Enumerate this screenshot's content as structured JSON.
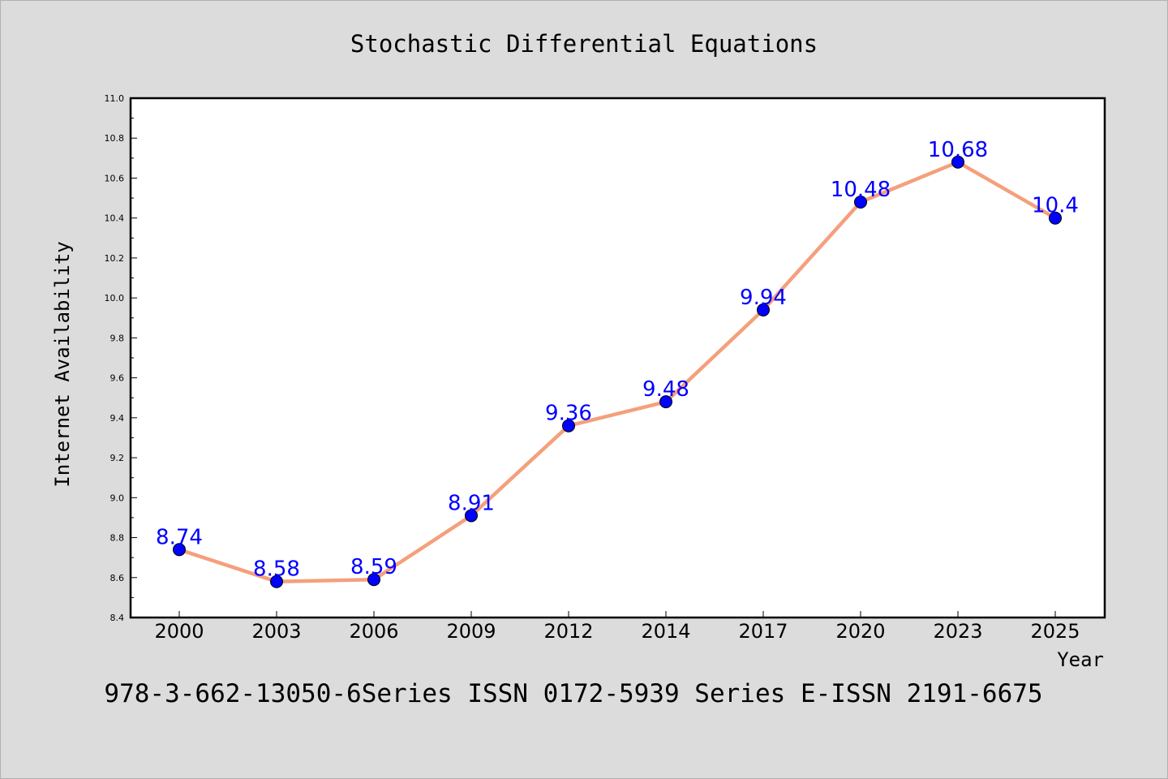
{
  "chart_data": {
    "type": "line",
    "title": "Stochastic Differential Equations",
    "xlabel": "Year",
    "ylabel": "Internet Availability",
    "categories": [
      "2000",
      "2003",
      "2006",
      "2009",
      "2012",
      "2014",
      "2017",
      "2020",
      "2023",
      "2025"
    ],
    "series": [
      {
        "values": [
          8.74,
          8.58,
          8.59,
          8.91,
          9.36,
          9.48,
          9.94,
          10.48,
          10.68,
          10.4
        ],
        "data_labels": [
          "8.74",
          "8.58",
          "8.59",
          "8.91",
          "9.36",
          "9.48",
          "9.94",
          "10.48",
          "10.68",
          "10.4"
        ],
        "line_color": "#f4a07c",
        "marker_color": "#0000ff"
      }
    ],
    "ylim": [
      8.4,
      11.0
    ],
    "yticks": [
      "8.4",
      "8.6",
      "8.8",
      "9.0",
      "9.2",
      "9.4",
      "9.6",
      "9.8",
      "10.0",
      "10.2",
      "10.4",
      "10.6",
      "10.8",
      "11.0"
    ],
    "grid": false,
    "legend": "none",
    "label_color": "#0000ff",
    "background_color": "#dcdcdc",
    "plot_background_color": "#ffffff"
  },
  "footer": "978-3-662-13050-6Series ISSN 0172-5939 Series E-ISSN 2191-6675"
}
